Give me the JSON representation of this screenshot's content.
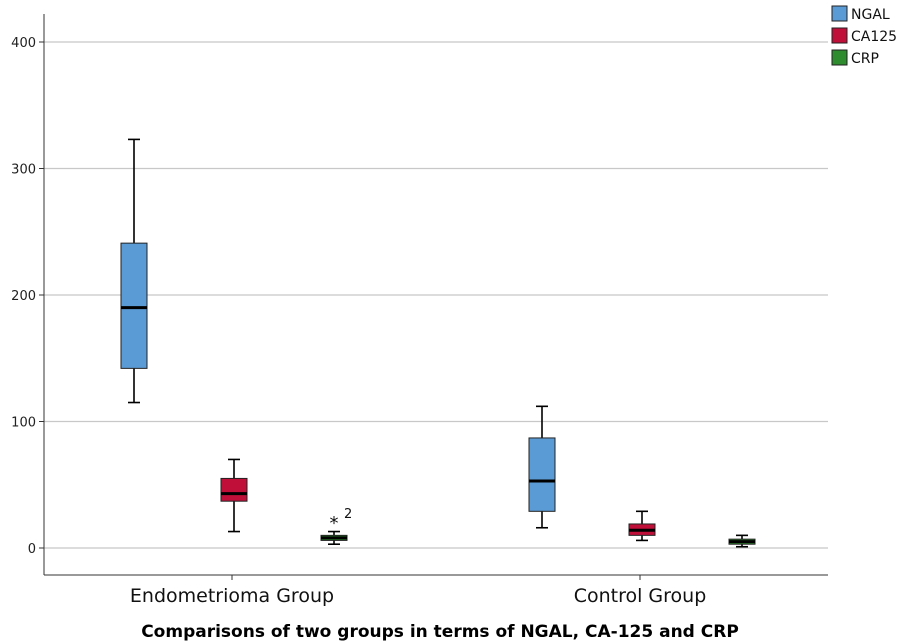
{
  "chart_data": {
    "type": "box",
    "xlabel": "Comparisons of two groups in terms of NGAL, CA-125 and CRP",
    "ylabel": "",
    "ylim": [
      -20,
      420
    ],
    "yticks": [
      0,
      100,
      200,
      300,
      400
    ],
    "grid": true,
    "legend_position": "top-right",
    "categories": [
      "Endometrioma Group",
      "Control Group"
    ],
    "series": [
      {
        "name": "NGAL",
        "color": "#5b9bd5",
        "boxes": [
          {
            "min": 115,
            "q1": 142,
            "median": 190,
            "q3": 241,
            "max": 323
          },
          {
            "min": 16,
            "q1": 29,
            "median": 53,
            "q3": 87,
            "max": 112
          }
        ]
      },
      {
        "name": "CA125",
        "color": "#c0103a",
        "boxes": [
          {
            "min": 13,
            "q1": 37,
            "median": 43,
            "q3": 55,
            "max": 70
          },
          {
            "min": 6,
            "q1": 10,
            "median": 14,
            "q3": 19,
            "max": 29
          }
        ]
      },
      {
        "name": "CRP",
        "color": "#2e8b2e",
        "boxes": [
          {
            "min": 3,
            "q1": 6,
            "median": 8,
            "q3": 10,
            "max": 13
          },
          {
            "min": 1,
            "q1": 3,
            "median": 5,
            "q3": 7,
            "max": 10
          }
        ]
      }
    ],
    "outliers": [
      {
        "category": "Endometrioma Group",
        "series": "CRP",
        "value": 22,
        "marker": "*",
        "label": "2"
      }
    ]
  }
}
